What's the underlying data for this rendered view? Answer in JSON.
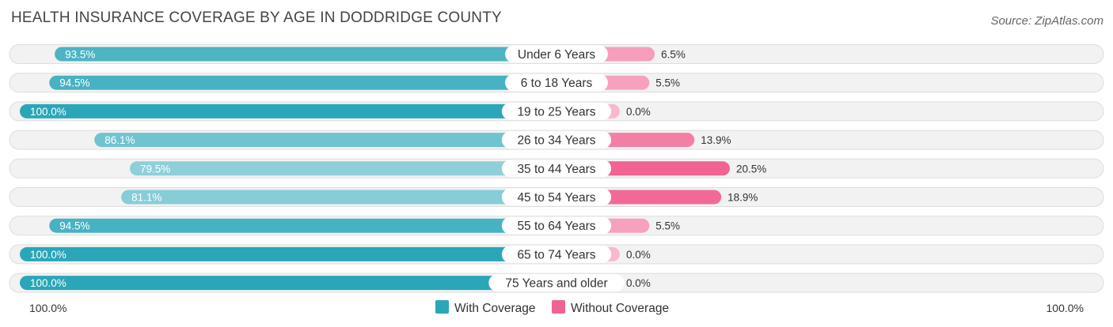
{
  "chart_data": {
    "type": "bar",
    "orientation": "horizontal-diverging",
    "title": "HEALTH INSURANCE COVERAGE BY AGE IN DODDRIDGE COUNTY",
    "source": "Source: ZipAtlas.com",
    "categories": [
      "Under 6 Years",
      "6 to 18 Years",
      "19 to 25 Years",
      "26 to 34 Years",
      "35 to 44 Years",
      "45 to 54 Years",
      "55 to 64 Years",
      "65 to 74 Years",
      "75 Years and older"
    ],
    "series": [
      {
        "name": "With Coverage",
        "values": [
          93.5,
          94.5,
          100.0,
          86.1,
          79.5,
          81.1,
          94.5,
          100.0,
          100.0
        ],
        "labels": [
          "93.5%",
          "94.5%",
          "100.0%",
          "86.1%",
          "79.5%",
          "81.1%",
          "94.5%",
          "100.0%",
          "100.0%"
        ],
        "color": "#2ba6b8"
      },
      {
        "name": "Without Coverage",
        "values": [
          6.5,
          5.5,
          0.0,
          13.9,
          20.5,
          18.9,
          5.5,
          0.0,
          0.0
        ],
        "labels": [
          "6.5%",
          "5.5%",
          "0.0%",
          "13.9%",
          "20.5%",
          "18.9%",
          "5.5%",
          "0.0%",
          "0.0%"
        ],
        "color": "#f06392"
      }
    ],
    "xlim": [
      0,
      100
    ],
    "axis_left_label": "100.0%",
    "axis_right_label": "100.0%",
    "legend_position": "bottom-center"
  }
}
